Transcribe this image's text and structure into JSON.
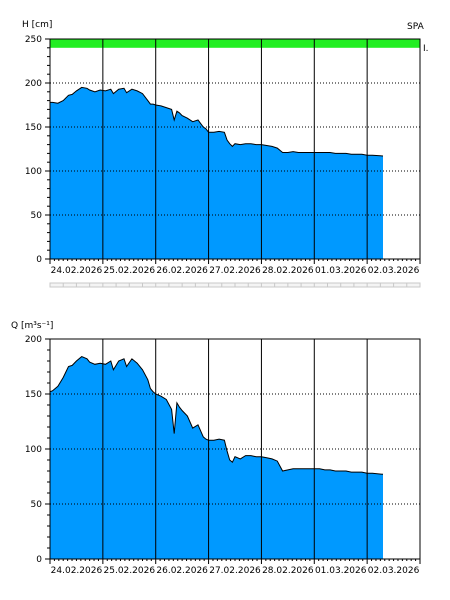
{
  "header": {
    "station": "SPA",
    "flood_marker": "I."
  },
  "chart_data": [
    {
      "type": "area",
      "ylabel": "H [cm]",
      "ylim": [
        0,
        250
      ],
      "yticks": [
        0,
        50,
        100,
        150,
        200,
        250
      ],
      "grid": true,
      "categories": [
        "24.02.2026",
        "25.02.2026",
        "26.02.2026",
        "27.02.2026",
        "28.02.2026",
        "01.03.2026",
        "02.03.2026"
      ],
      "day_range": [
        0,
        7
      ],
      "color": "#0099ff",
      "threshold_band": {
        "from": 240,
        "to": 250,
        "color": "#22ee22"
      },
      "series": [
        {
          "x": [
            0,
            0.05,
            0.15,
            0.25,
            0.35,
            0.42,
            0.5,
            0.6,
            0.7,
            0.75,
            0.85,
            0.95,
            1.05,
            1.15,
            1.2,
            1.3,
            1.4,
            1.45,
            1.55,
            1.65,
            1.75,
            1.85,
            1.9,
            1.95,
            2.0,
            2.1,
            2.2,
            2.3,
            2.35,
            2.4,
            2.45,
            2.5,
            2.6,
            2.7,
            2.8,
            2.9,
            2.95,
            3.0,
            3.1,
            3.2,
            3.3,
            3.35,
            3.4,
            3.45,
            3.5,
            3.6,
            3.7,
            3.8,
            3.9,
            4.0,
            4.1,
            4.2,
            4.3,
            4.4,
            4.5,
            4.6,
            4.7,
            4.8,
            4.9,
            5.0,
            5.1,
            5.2,
            5.3,
            5.4,
            5.5,
            5.6,
            5.7,
            5.8,
            5.9,
            6.0,
            6.1,
            6.3
          ],
          "y": [
            178,
            178,
            177,
            180,
            186,
            187,
            191,
            195,
            194,
            192,
            190,
            192,
            191,
            193,
            188,
            193,
            194,
            189,
            193,
            191,
            188,
            180,
            176,
            176,
            175,
            174,
            172,
            170,
            158,
            168,
            166,
            163,
            160,
            156,
            158,
            150,
            148,
            144,
            144,
            145,
            144,
            135,
            131,
            128,
            131,
            130,
            131,
            131,
            130,
            130,
            129,
            128,
            126,
            121,
            121,
            122,
            121,
            121,
            121,
            121,
            121,
            121,
            121,
            120,
            120,
            120,
            119,
            119,
            119,
            118,
            118,
            117
          ]
        }
      ]
    },
    {
      "type": "area",
      "ylabel": "Q [m³s⁻¹]",
      "ylim": [
        0,
        200
      ],
      "yticks": [
        0,
        50,
        100,
        150,
        200
      ],
      "grid": true,
      "categories": [
        "24.02.2026",
        "25.02.2026",
        "26.02.2026",
        "27.02.2026",
        "28.02.2026",
        "01.03.2026",
        "02.03.2026"
      ],
      "day_range": [
        0,
        7
      ],
      "color": "#0099ff",
      "series": [
        {
          "x": [
            0,
            0.05,
            0.15,
            0.25,
            0.35,
            0.42,
            0.5,
            0.6,
            0.7,
            0.75,
            0.85,
            0.95,
            1.05,
            1.15,
            1.2,
            1.3,
            1.4,
            1.45,
            1.55,
            1.65,
            1.75,
            1.85,
            1.9,
            1.95,
            2.0,
            2.1,
            2.2,
            2.3,
            2.35,
            2.4,
            2.45,
            2.5,
            2.6,
            2.7,
            2.8,
            2.9,
            2.95,
            3.0,
            3.1,
            3.2,
            3.3,
            3.35,
            3.4,
            3.45,
            3.5,
            3.6,
            3.7,
            3.8,
            3.9,
            4.0,
            4.1,
            4.2,
            4.3,
            4.4,
            4.5,
            4.6,
            4.7,
            4.8,
            4.9,
            5.0,
            5.1,
            5.2,
            5.3,
            5.4,
            5.5,
            5.6,
            5.7,
            5.8,
            5.9,
            6.0,
            6.1,
            6.3
          ],
          "y": [
            152,
            153,
            157,
            165,
            175,
            176,
            180,
            184,
            182,
            179,
            177,
            178,
            177,
            180,
            172,
            180,
            182,
            175,
            182,
            178,
            172,
            163,
            155,
            152,
            150,
            148,
            145,
            136,
            114,
            142,
            138,
            135,
            130,
            119,
            122,
            111,
            109,
            108,
            108,
            109,
            108,
            98,
            90,
            88,
            93,
            91,
            94,
            94,
            93,
            93,
            92,
            91,
            89,
            80,
            81,
            82,
            82,
            82,
            82,
            82,
            82,
            81,
            81,
            80,
            80,
            80,
            79,
            79,
            79,
            78,
            78,
            77
          ]
        }
      ]
    }
  ]
}
